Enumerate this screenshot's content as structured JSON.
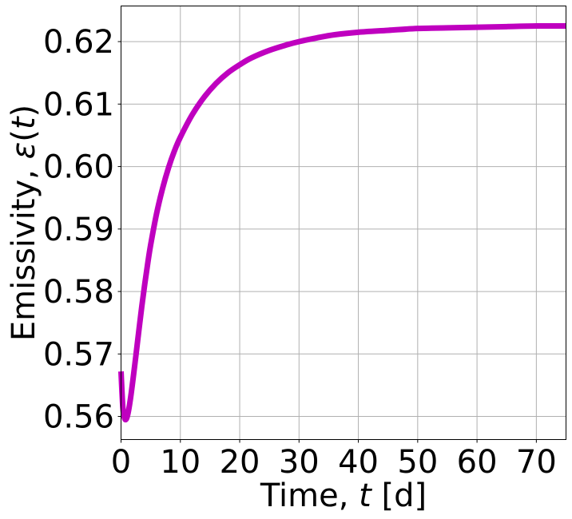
{
  "chart_data": {
    "type": "line",
    "title": "",
    "xlabel_prefix": "Time, ",
    "xlabel_var": "t",
    "xlabel_suffix": " [d]",
    "ylabel_prefix": "Emissivity, ",
    "ylabel_var": "ε",
    "ylabel_arg": "t",
    "xlim": [
      0,
      75
    ],
    "ylim": [
      0.5563,
      0.6257
    ],
    "x_ticks": [
      0,
      10,
      20,
      30,
      40,
      50,
      60,
      70
    ],
    "x_tick_labels": [
      "0",
      "10",
      "20",
      "30",
      "40",
      "50",
      "60",
      "70"
    ],
    "y_ticks": [
      0.56,
      0.57,
      0.58,
      0.59,
      0.6,
      0.61,
      0.62
    ],
    "y_tick_labels": [
      "0.56",
      "0.57",
      "0.58",
      "0.59",
      "0.60",
      "0.61",
      "0.62"
    ],
    "grid": true,
    "series": [
      {
        "color": "#bf00bf",
        "x": [
          0,
          0.3,
          0.6,
          0.9,
          1.2,
          1.6,
          2,
          2.5,
          3,
          3.5,
          4,
          4.5,
          5,
          6,
          7,
          8,
          9,
          10,
          12,
          14,
          16,
          18,
          20,
          22,
          25,
          28,
          30,
          33,
          36,
          40,
          45,
          50,
          55,
          60,
          65,
          70,
          75
        ],
        "y": [
          0.5672,
          0.5615,
          0.5597,
          0.5596,
          0.5606,
          0.5629,
          0.5658,
          0.5697,
          0.5737,
          0.5776,
          0.5812,
          0.5845,
          0.5875,
          0.5925,
          0.5965,
          0.5998,
          0.6025,
          0.6047,
          0.6083,
          0.6111,
          0.6133,
          0.615,
          0.6163,
          0.6174,
          0.6186,
          0.6195,
          0.62,
          0.6206,
          0.6211,
          0.6215,
          0.6218,
          0.6221,
          0.6222,
          0.6223,
          0.6224,
          0.6225,
          0.6225
        ]
      }
    ]
  }
}
